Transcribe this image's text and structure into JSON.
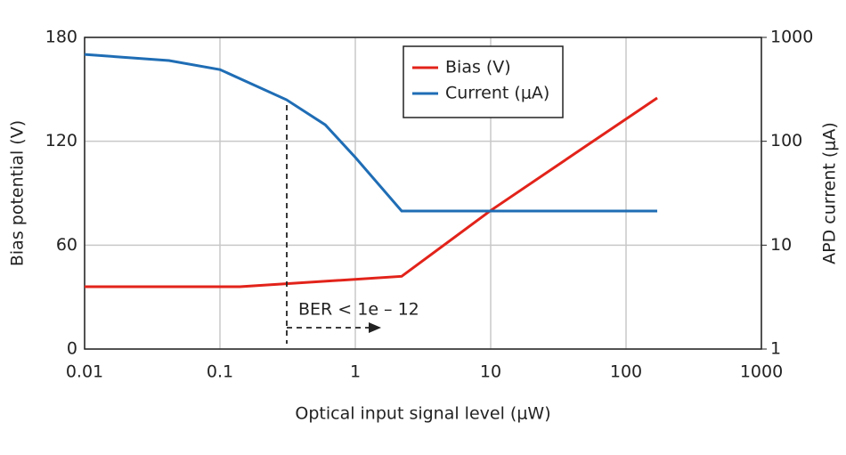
{
  "chart_data": {
    "type": "line",
    "xlabel": "Optical input signal level (μW)",
    "ylabel": "Bias potential (V)",
    "y2label": "APD current (μA)",
    "xscale": "log",
    "y2scale": "log",
    "xlim": [
      0.01,
      1000
    ],
    "xticks": [
      0.01,
      0.1,
      1,
      10,
      100,
      1000
    ],
    "ylim": [
      0,
      180
    ],
    "yticks": [
      0,
      60,
      120,
      180
    ],
    "y2lim": [
      1,
      1000
    ],
    "y2ticks": [
      1,
      10,
      100,
      1000
    ],
    "grid": true,
    "legend": "top-center",
    "annotation": "BER < 1e – 12",
    "series": [
      {
        "name": "Bias (V)",
        "color": "#e2231a",
        "axis": "y",
        "x": [
          0.01,
          0.14,
          2.2,
          10,
          50,
          170
        ],
        "values": [
          36,
          36,
          42,
          80,
          117,
          145
        ]
      },
      {
        "name": "Current (μA)",
        "color": "#1f6db5",
        "axis": "y2",
        "x": [
          0.01,
          0.042,
          0.1,
          0.31,
          0.6,
          1,
          2.2,
          170
        ],
        "values": [
          686,
          598,
          490,
          251,
          144,
          70,
          21.3,
          21.3
        ]
      }
    ]
  }
}
